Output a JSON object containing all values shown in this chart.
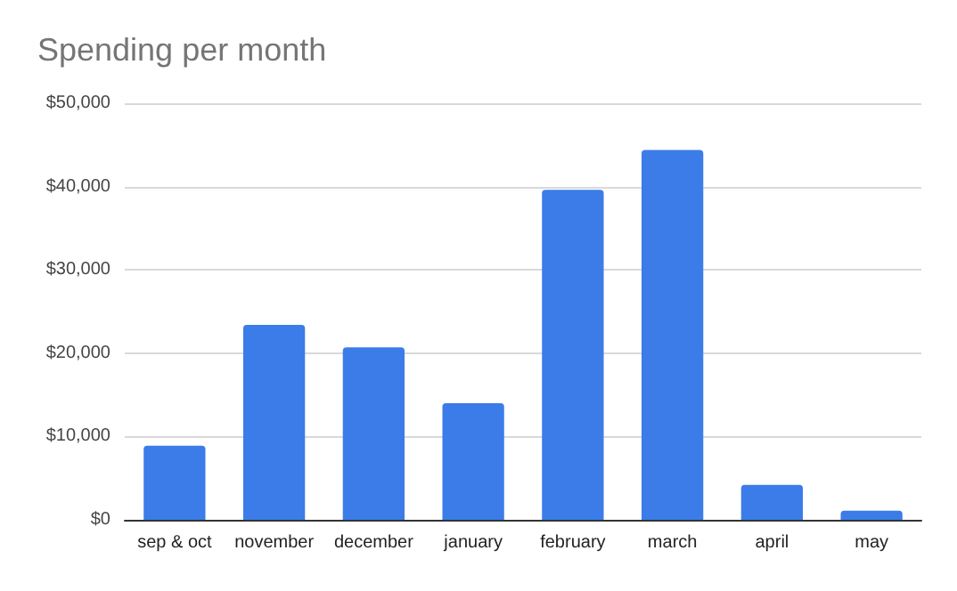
{
  "chart_data": {
    "type": "bar",
    "title": "Spending per month",
    "categories": [
      "sep & oct",
      "november",
      "december",
      "january",
      "february",
      "march",
      "april",
      "may"
    ],
    "values": [
      8900,
      23400,
      20700,
      14000,
      39600,
      44400,
      4200,
      1100
    ],
    "color": "#3b7ce9",
    "ylim": [
      0,
      50000
    ],
    "yticks": [
      {
        "value": 0,
        "label": "$0"
      },
      {
        "value": 10000,
        "label": "$10,000"
      },
      {
        "value": 20000,
        "label": "$20,000"
      },
      {
        "value": 30000,
        "label": "$30,000"
      },
      {
        "value": 40000,
        "label": "$40,000"
      },
      {
        "value": 50000,
        "label": "$50,000"
      }
    ],
    "grid": "y"
  }
}
